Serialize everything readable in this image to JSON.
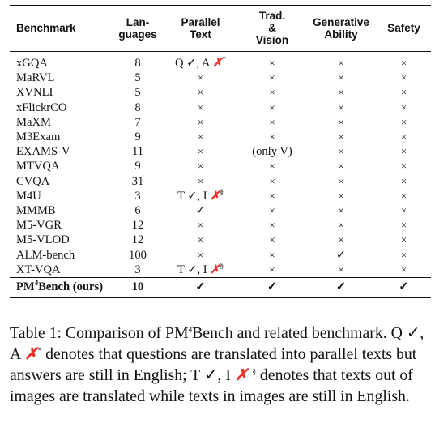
{
  "table": {
    "headers": [
      "Benchmark",
      "Lan-\nguages",
      "Parallel\nText",
      "Trad.\n&\nVision",
      "Generative\nAbility",
      "Safety"
    ],
    "rows": [
      [
        "xGQA",
        "8",
        "Q ✓, A ✗*",
        "×",
        "×",
        "×"
      ],
      [
        "MaRVL",
        "5",
        "×",
        "×",
        "×",
        "×"
      ],
      [
        "XVNLI",
        "5",
        "×",
        "×",
        "×",
        "×"
      ],
      [
        "xFlickrCO",
        "8",
        "×",
        "×",
        "×",
        "×"
      ],
      [
        "MaXM",
        "7",
        "×",
        "×",
        "×",
        "×"
      ],
      [
        "M3Exam",
        "9",
        "×",
        "×",
        "×",
        "×"
      ],
      [
        "EXAMS-V",
        "11",
        "×",
        "(only V)",
        "×",
        "×"
      ],
      [
        "MTVQA",
        "9",
        "×",
        "×",
        "×",
        "×"
      ],
      [
        "CVQA",
        "31",
        "×",
        "×",
        "×",
        "×"
      ],
      [
        "M4U",
        "3",
        "T ✓, I ✗§",
        "×",
        "×",
        "×"
      ],
      [
        "MMMB",
        "6",
        "✓",
        "×",
        "×",
        "×"
      ],
      [
        "M5-VGR",
        "12",
        "×",
        "×",
        "×",
        "×"
      ],
      [
        "M5-VLOD",
        "12",
        "×",
        "×",
        "×",
        "×"
      ],
      [
        "ALM-bench",
        "100",
        "×",
        "×",
        "✓",
        "×"
      ],
      [
        "XT-VQA",
        "3",
        "T ✓, I ✗§",
        "×",
        "×",
        "×"
      ]
    ],
    "ours": [
      "PM⁴Bench (ours)",
      "10",
      "✓",
      "✓",
      "✓",
      "✓"
    ]
  },
  "caption": "Table 1: Comparison of PM⁴Bench and related benchmark. Q ✓, A ✗* denotes that questions are translated into parallel texts but answers are still in English; T ✓, I ✗ § denotes that texts out of images are translated while texts in images are still in English.",
  "colors": {
    "cross_mark": "#e8312a",
    "rule": "#111111"
  }
}
